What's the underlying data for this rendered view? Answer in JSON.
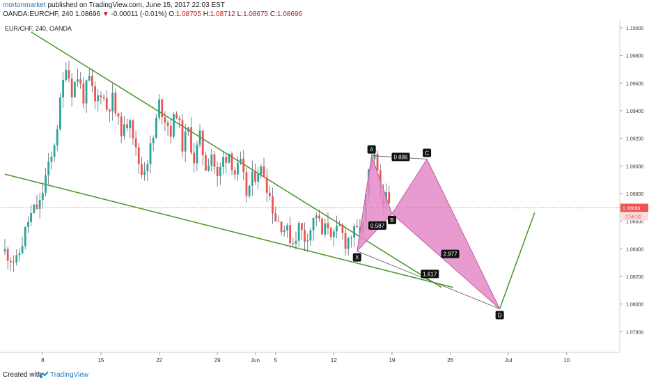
{
  "header": {
    "author": "mortonmarket",
    "published_text": "published on TradingView.com, June 15, 2017 22:03 EST",
    "symbol": "OANDA:EURCHF, 240",
    "last": "1.08696",
    "change_arrow": "▼",
    "change": "-0.00011 (-0.01%)",
    "o_label": "O:",
    "o_value": "1.08705",
    "h_label": "H:",
    "h_value": "1.08712",
    "l_label": "L:",
    "l_value": "1.08675",
    "c_label": "C:",
    "c_value": "1.08696"
  },
  "footer": {
    "created_with": "Created with",
    "brand": "TradingView"
  },
  "colors": {
    "up": "#26a69a",
    "down": "#ef5350",
    "wick": "#5d606b",
    "trendline": "#4f9a32",
    "pattern_fill": "#e48ac6",
    "pattern_stroke": "#c05ca5",
    "price_line": "#e57373",
    "price_label": "#ef5350"
  },
  "chart_data": {
    "type": "candlestick",
    "title": "EUR/CHF, 240, OANDA",
    "x_ticks": [
      "8",
      "15",
      "22",
      "29",
      "Jun",
      "5",
      "12",
      "19",
      "26",
      "Jul",
      "10"
    ],
    "y_ticks": [
      "1.10000",
      "1.09800",
      "1.09600",
      "1.09400",
      "1.09200",
      "1.09000",
      "1.08800",
      "1.08600",
      "1.08400",
      "1.08200",
      "1.08000",
      "1.07800"
    ],
    "ylim": [
      1.0765,
      1.1005
    ],
    "last_price": "1.08696",
    "countdown": "1:56:32",
    "close_path": [
      [
        0,
        1.0838
      ],
      [
        4,
        1.083
      ],
      [
        6,
        1.0845
      ],
      [
        8,
        1.086
      ],
      [
        10,
        1.0868
      ],
      [
        12,
        1.0872
      ],
      [
        14,
        1.0892
      ],
      [
        16,
        1.0905
      ],
      [
        18,
        1.093
      ],
      [
        20,
        1.096
      ],
      [
        21,
        1.0975
      ],
      [
        23,
        1.0955
      ],
      [
        25,
        1.0965
      ],
      [
        27,
        1.095
      ],
      [
        29,
        1.0962
      ],
      [
        31,
        1.0945
      ],
      [
        33,
        1.0955
      ],
      [
        35,
        1.0942
      ],
      [
        37,
        1.0948
      ],
      [
        39,
        1.093
      ],
      [
        41,
        1.0925
      ],
      [
        43,
        1.0938
      ],
      [
        45,
        1.091
      ],
      [
        47,
        1.0895
      ],
      [
        49,
        1.0905
      ],
      [
        51,
        1.092
      ],
      [
        53,
        1.0945
      ],
      [
        55,
        1.0935
      ],
      [
        57,
        1.0925
      ],
      [
        59,
        1.094
      ],
      [
        61,
        1.0915
      ],
      [
        63,
        1.0925
      ],
      [
        65,
        1.0905
      ],
      [
        67,
        1.092
      ],
      [
        69,
        1.09
      ],
      [
        71,
        1.091
      ],
      [
        73,
        1.089
      ],
      [
        75,
        1.0905
      ],
      [
        77,
        1.091
      ],
      [
        79,
        1.0895
      ],
      [
        81,
        1.09
      ],
      [
        83,
        1.088
      ],
      [
        85,
        1.089
      ],
      [
        87,
        1.0898
      ],
      [
        89,
        1.0895
      ],
      [
        91,
        1.0878
      ],
      [
        93,
        1.0862
      ],
      [
        95,
        1.0858
      ],
      [
        97,
        1.0852
      ],
      [
        99,
        1.0845
      ],
      [
        101,
        1.0856
      ],
      [
        103,
        1.0848
      ],
      [
        105,
        1.0855
      ],
      [
        107,
        1.0866
      ],
      [
        109,
        1.085
      ],
      [
        111,
        1.0858
      ],
      [
        113,
        1.0848
      ],
      [
        115,
        1.0855
      ],
      [
        117,
        1.0845
      ],
      [
        119,
        1.085
      ],
      [
        121,
        1.0852
      ],
      [
        123,
        1.0856
      ],
      [
        125,
        1.0895
      ],
      [
        127,
        1.0905
      ],
      [
        129,
        1.088
      ],
      [
        131,
        1.0875
      ],
      [
        132,
        1.087
      ]
    ],
    "trendlines": [
      {
        "x1": 9,
        "y1": 1.0997,
        "x2": 150,
        "y2": 1.0812
      },
      {
        "x1": 0,
        "y1": 1.0894,
        "x2": 154,
        "y2": 1.0812
      }
    ],
    "projection": [
      {
        "x": 170,
        "y": 1.07965
      },
      {
        "x": 182,
        "y": 1.08662
      }
    ],
    "harmonic": {
      "points": [
        {
          "label": "X",
          "x": 121,
          "y": 1.08383
        },
        {
          "label": "A",
          "x": 126,
          "y": 1.09074
        },
        {
          "label": "B",
          "x": 133,
          "y": 1.08654
        },
        {
          "label": "C",
          "x": 145,
          "y": 1.09049
        },
        {
          "label": "D",
          "x": 170,
          "y": 1.07965
        }
      ],
      "ratios": [
        {
          "label": "0.587",
          "x": 128,
          "y": 1.08568
        },
        {
          "label": "0.886",
          "x": 136,
          "y": 1.09065
        },
        {
          "label": "2.977",
          "x": 153,
          "y": 1.08363
        },
        {
          "label": "1.617",
          "x": 146,
          "y": 1.08218
        }
      ]
    }
  }
}
